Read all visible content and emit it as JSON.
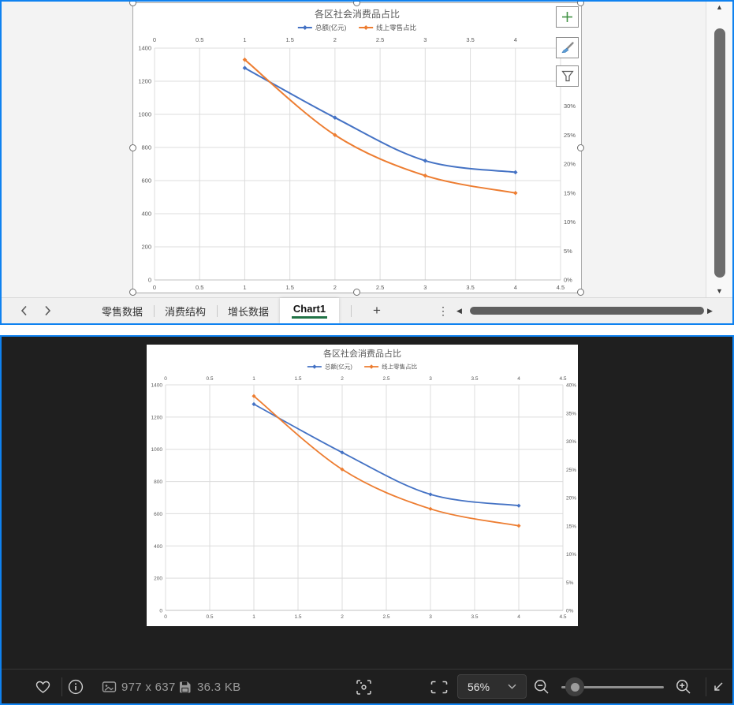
{
  "spreadsheet": {
    "tabs": [
      {
        "label": "零售数据",
        "active": false
      },
      {
        "label": "消费结构",
        "active": false
      },
      {
        "label": "增长数据",
        "active": false
      },
      {
        "label": "Chart1",
        "active": true
      }
    ],
    "add_tab_label": "+",
    "more_tabs_label": "⋮",
    "glyphs": {
      "prev_sheet": "‹",
      "next_sheet": "›",
      "scroll_left": "◀",
      "scroll_right": "▶",
      "scroll_up": "▲",
      "scroll_down": "▼"
    },
    "chart_tool_icons": [
      "chart-elements-plus",
      "chart-styles-brush",
      "chart-filters-funnel"
    ]
  },
  "chart_data": {
    "type": "line",
    "title": "各区社会消费品占比",
    "x": [
      1,
      2,
      3,
      4
    ],
    "series": [
      {
        "name": "总额(亿元)",
        "axis": "left",
        "color": "#4472C4",
        "values": [
          1280,
          980,
          720,
          650
        ]
      },
      {
        "name": "线上零售占比",
        "axis": "right",
        "color": "#ED7D31",
        "values": [
          38,
          25,
          18,
          15
        ]
      }
    ],
    "x_axis": {
      "min": 0,
      "max": 4.5,
      "tick_labels": [
        "0",
        "0.5",
        "1",
        "1.5",
        "2",
        "2.5",
        "3",
        "3.5",
        "4",
        "4.5"
      ],
      "labels_top_and_bottom": true
    },
    "left_axis": {
      "min": 0,
      "max": 1400,
      "tick_labels": [
        "0",
        "200",
        "400",
        "600",
        "800",
        "1000",
        "1200",
        "1400"
      ]
    },
    "right_axis": {
      "min": 0,
      "max": 40,
      "tick_labels": [
        "0%",
        "5%",
        "10%",
        "15%",
        "20%",
        "25%",
        "30%",
        "35%",
        "40%"
      ]
    },
    "legend_position": "top",
    "grid": true
  },
  "viewer": {
    "dimensions_label": "977 x 637",
    "filesize_label": "36.3 KB",
    "zoom_value": "56%"
  },
  "colors": {
    "window_border": "#0f82f0",
    "series_blue": "#4472C4",
    "series_orange": "#ED7D31",
    "active_tab_underline": "#217346",
    "viewer_background": "#1f1f1f"
  }
}
